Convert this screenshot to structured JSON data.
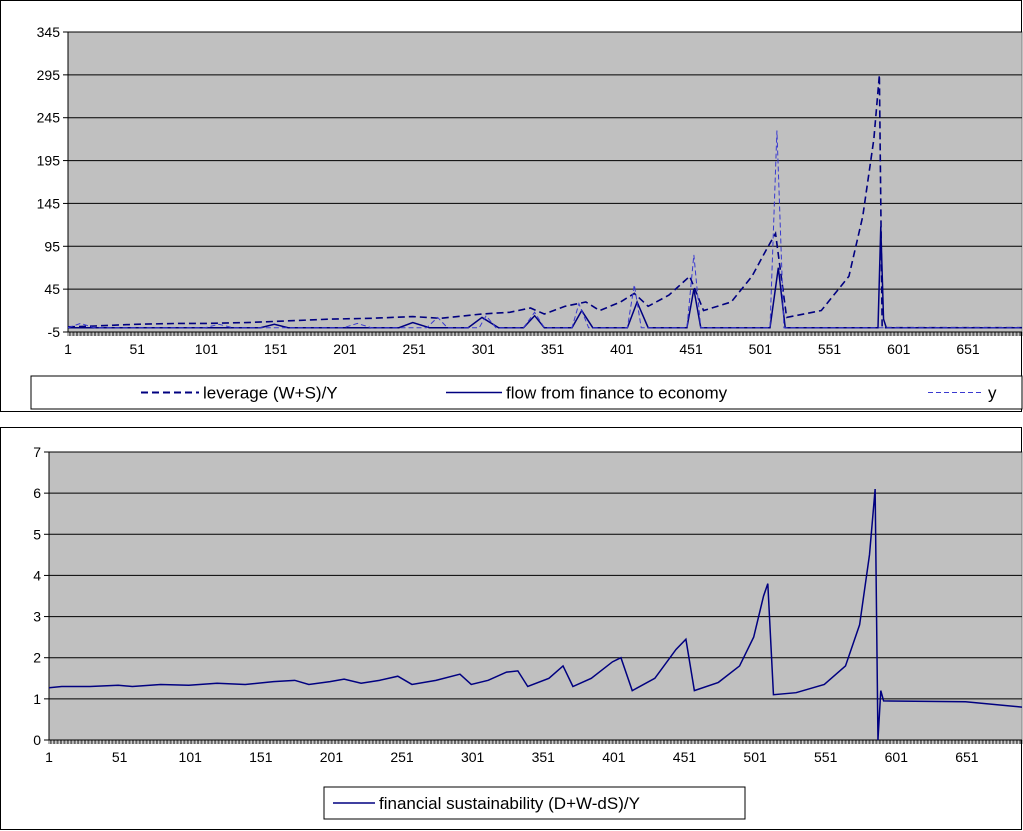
{
  "chart_data": [
    {
      "type": "line",
      "title": "",
      "xlabel": "",
      "ylabel": "",
      "xlim": [
        1,
        690
      ],
      "ylim": [
        -5,
        345
      ],
      "y_ticks": [
        -5,
        45,
        95,
        145,
        195,
        245,
        295,
        345
      ],
      "x_ticks": [
        1,
        51,
        101,
        151,
        201,
        251,
        301,
        351,
        401,
        451,
        501,
        551,
        601,
        651
      ],
      "grid": "horizontal",
      "plot_background": "#c0c0c0",
      "legend_position": "bottom",
      "series": [
        {
          "name": "leverage (W+S)/Y",
          "style": "dashed",
          "color": "#000080",
          "points": [
            [
              1,
              1
            ],
            [
              20,
              2
            ],
            [
              50,
              4
            ],
            [
              80,
              5
            ],
            [
              100,
              5
            ],
            [
              130,
              6
            ],
            [
              160,
              8
            ],
            [
              190,
              10
            ],
            [
              220,
              11
            ],
            [
              250,
              13
            ],
            [
              270,
              11
            ],
            [
              300,
              16
            ],
            [
              320,
              18
            ],
            [
              335,
              23
            ],
            [
              345,
              16
            ],
            [
              360,
              25
            ],
            [
              375,
              30
            ],
            [
              385,
              20
            ],
            [
              400,
              30
            ],
            [
              410,
              40
            ],
            [
              420,
              25
            ],
            [
              435,
              38
            ],
            [
              450,
              60
            ],
            [
              460,
              20
            ],
            [
              480,
              30
            ],
            [
              495,
              60
            ],
            [
              505,
              90
            ],
            [
              512,
              110
            ],
            [
              520,
              12
            ],
            [
              545,
              20
            ],
            [
              565,
              60
            ],
            [
              575,
              130
            ],
            [
              583,
              220
            ],
            [
              587,
              295
            ],
            [
              589,
              0
            ],
            [
              690,
              0
            ]
          ]
        },
        {
          "name": "flow from finance to economy",
          "style": "solid",
          "color": "#000080",
          "points": [
            [
              1,
              0
            ],
            [
              140,
              0
            ],
            [
              150,
              4
            ],
            [
              160,
              0
            ],
            [
              240,
              0
            ],
            [
              250,
              6
            ],
            [
              262,
              0
            ],
            [
              290,
              0
            ],
            [
              300,
              12
            ],
            [
              312,
              0
            ],
            [
              330,
              0
            ],
            [
              338,
              14
            ],
            [
              345,
              0
            ],
            [
              365,
              0
            ],
            [
              372,
              20
            ],
            [
              380,
              0
            ],
            [
              405,
              0
            ],
            [
              412,
              30
            ],
            [
              420,
              0
            ],
            [
              448,
              0
            ],
            [
              453,
              45
            ],
            [
              458,
              0
            ],
            [
              508,
              0
            ],
            [
              514,
              70
            ],
            [
              519,
              0
            ],
            [
              586,
              0
            ],
            [
              588,
              118
            ],
            [
              590,
              10
            ],
            [
              592,
              0
            ],
            [
              690,
              0
            ]
          ]
        },
        {
          "name": "y",
          "style": "dashed-thin",
          "color": "#3a3ad0",
          "points": [
            [
              1,
              0
            ],
            [
              10,
              5
            ],
            [
              20,
              0
            ],
            [
              100,
              0
            ],
            [
              110,
              4
            ],
            [
              120,
              0
            ],
            [
              200,
              0
            ],
            [
              210,
              5
            ],
            [
              220,
              0
            ],
            [
              260,
              0
            ],
            [
              268,
              12
            ],
            [
              275,
              0
            ],
            [
              298,
              0
            ],
            [
              303,
              14
            ],
            [
              310,
              0
            ],
            [
              330,
              0
            ],
            [
              338,
              18
            ],
            [
              345,
              0
            ],
            [
              365,
              0
            ],
            [
              370,
              28
            ],
            [
              377,
              0
            ],
            [
              405,
              0
            ],
            [
              410,
              50
            ],
            [
              415,
              0
            ],
            [
              448,
              0
            ],
            [
              453,
              85
            ],
            [
              458,
              0
            ],
            [
              508,
              0
            ],
            [
              513,
              230
            ],
            [
              518,
              0
            ],
            [
              690,
              0
            ]
          ]
        }
      ]
    },
    {
      "type": "line",
      "title": "",
      "xlabel": "",
      "ylabel": "",
      "xlim": [
        1,
        690
      ],
      "ylim": [
        0,
        7
      ],
      "y_ticks": [
        0,
        1,
        2,
        3,
        4,
        5,
        6,
        7
      ],
      "x_ticks": [
        1,
        51,
        101,
        151,
        201,
        251,
        301,
        351,
        401,
        451,
        501,
        551,
        601,
        651
      ],
      "grid": "horizontal",
      "plot_background": "#c0c0c0",
      "legend_position": "bottom",
      "series": [
        {
          "name": "financial sustainability (D+W-dS)/Y",
          "style": "solid",
          "color": "#000080",
          "points": [
            [
              1,
              1.27
            ],
            [
              10,
              1.3
            ],
            [
              30,
              1.3
            ],
            [
              50,
              1.33
            ],
            [
              60,
              1.3
            ],
            [
              80,
              1.35
            ],
            [
              100,
              1.33
            ],
            [
              120,
              1.38
            ],
            [
              140,
              1.35
            ],
            [
              160,
              1.42
            ],
            [
              175,
              1.45
            ],
            [
              185,
              1.35
            ],
            [
              200,
              1.42
            ],
            [
              210,
              1.48
            ],
            [
              222,
              1.38
            ],
            [
              235,
              1.45
            ],
            [
              248,
              1.55
            ],
            [
              258,
              1.35
            ],
            [
              275,
              1.45
            ],
            [
              292,
              1.6
            ],
            [
              300,
              1.35
            ],
            [
              312,
              1.45
            ],
            [
              325,
              1.65
            ],
            [
              333,
              1.68
            ],
            [
              340,
              1.3
            ],
            [
              355,
              1.5
            ],
            [
              365,
              1.8
            ],
            [
              372,
              1.3
            ],
            [
              385,
              1.5
            ],
            [
              400,
              1.9
            ],
            [
              406,
              2.0
            ],
            [
              414,
              1.2
            ],
            [
              430,
              1.5
            ],
            [
              445,
              2.2
            ],
            [
              452,
              2.45
            ],
            [
              458,
              1.2
            ],
            [
              475,
              1.4
            ],
            [
              490,
              1.8
            ],
            [
              500,
              2.5
            ],
            [
              507,
              3.5
            ],
            [
              510,
              3.8
            ],
            [
              514,
              1.1
            ],
            [
              530,
              1.15
            ],
            [
              550,
              1.35
            ],
            [
              565,
              1.8
            ],
            [
              575,
              2.8
            ],
            [
              582,
              4.5
            ],
            [
              586,
              6.1
            ],
            [
              588,
              0
            ],
            [
              590,
              1.2
            ],
            [
              592,
              0.95
            ],
            [
              650,
              0.93
            ],
            [
              690,
              0.8
            ]
          ]
        }
      ]
    }
  ]
}
